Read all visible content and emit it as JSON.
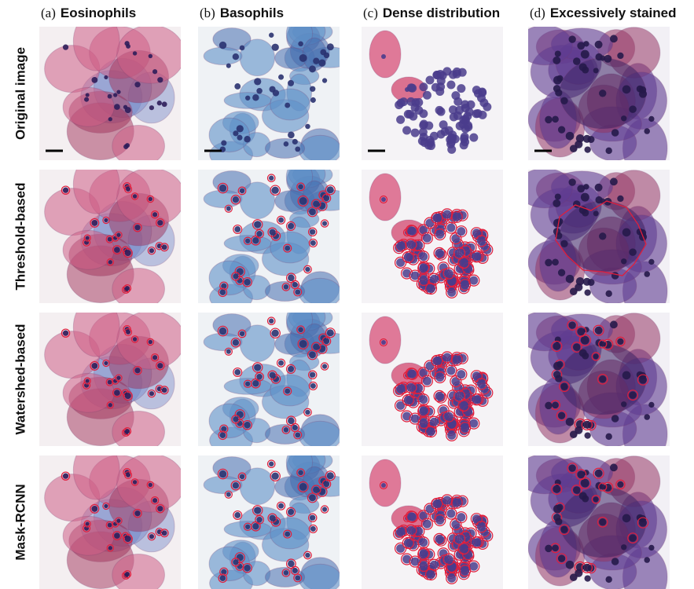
{
  "columns": [
    {
      "label": "(a)",
      "title": "Eosinophils"
    },
    {
      "label": "(b)",
      "title": "Basophils"
    },
    {
      "label": "(c)",
      "title": "Dense distribution"
    },
    {
      "label": "(d)",
      "title": "Excessively stained"
    }
  ],
  "rows": [
    "Original image",
    "Threshold-based",
    "Watershed-based",
    "Mask-RCNN"
  ]
}
